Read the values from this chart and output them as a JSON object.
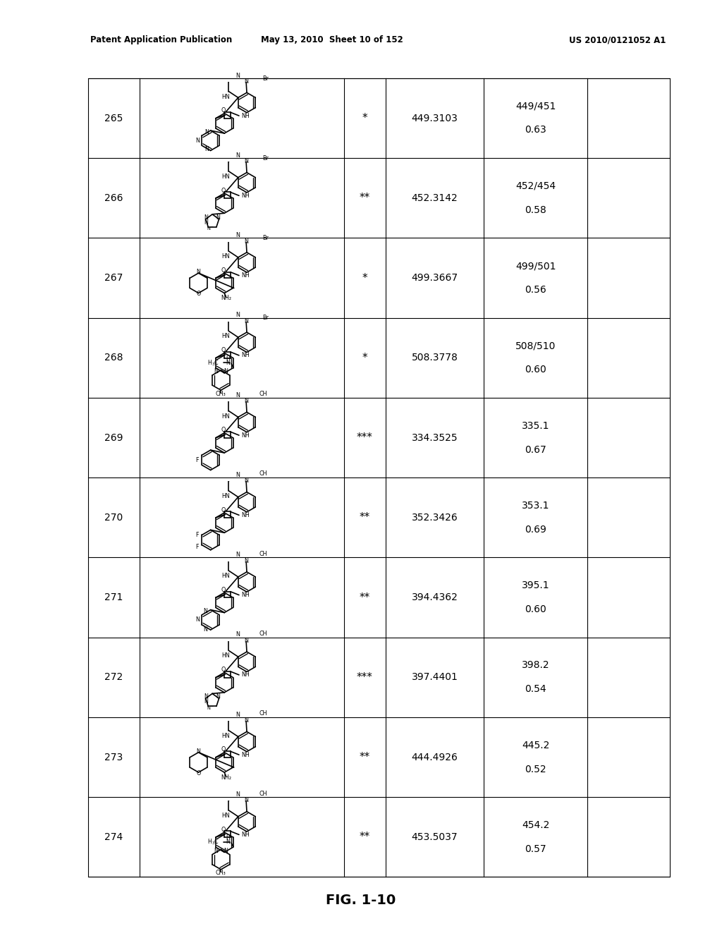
{
  "title_left": "Patent Application Publication",
  "title_mid": "May 13, 2010  Sheet 10 of 152",
  "title_right": "US 2010/0121052 A1",
  "fig_label": "FIG. 1-10",
  "rows": [
    {
      "id": "265",
      "activity": "*",
      "mass": "449.3103",
      "ms": "449/451",
      "clogp": "0.63"
    },
    {
      "id": "266",
      "activity": "**",
      "mass": "452.3142",
      "ms": "452/454",
      "clogp": "0.58"
    },
    {
      "id": "267",
      "activity": "*",
      "mass": "499.3667",
      "ms": "499/501",
      "clogp": "0.56"
    },
    {
      "id": "268",
      "activity": "*",
      "mass": "508.3778",
      "ms": "508/510",
      "clogp": "0.60"
    },
    {
      "id": "269",
      "activity": "***",
      "mass": "334.3525",
      "ms": "335.1",
      "clogp": "0.67"
    },
    {
      "id": "270",
      "activity": "**",
      "mass": "352.3426",
      "ms": "353.1",
      "clogp": "0.69"
    },
    {
      "id": "271",
      "activity": "**",
      "mass": "394.4362",
      "ms": "395.1",
      "clogp": "0.60"
    },
    {
      "id": "272",
      "activity": "***",
      "mass": "397.4401",
      "ms": "398.2",
      "clogp": "0.54"
    },
    {
      "id": "273",
      "activity": "**",
      "mass": "444.4926",
      "ms": "445.2",
      "clogp": "0.52"
    },
    {
      "id": "274",
      "activity": "**",
      "mass": "453.5037",
      "ms": "454.2",
      "clogp": "0.57"
    }
  ],
  "bg_color": "#ffffff",
  "line_color": "#000000"
}
